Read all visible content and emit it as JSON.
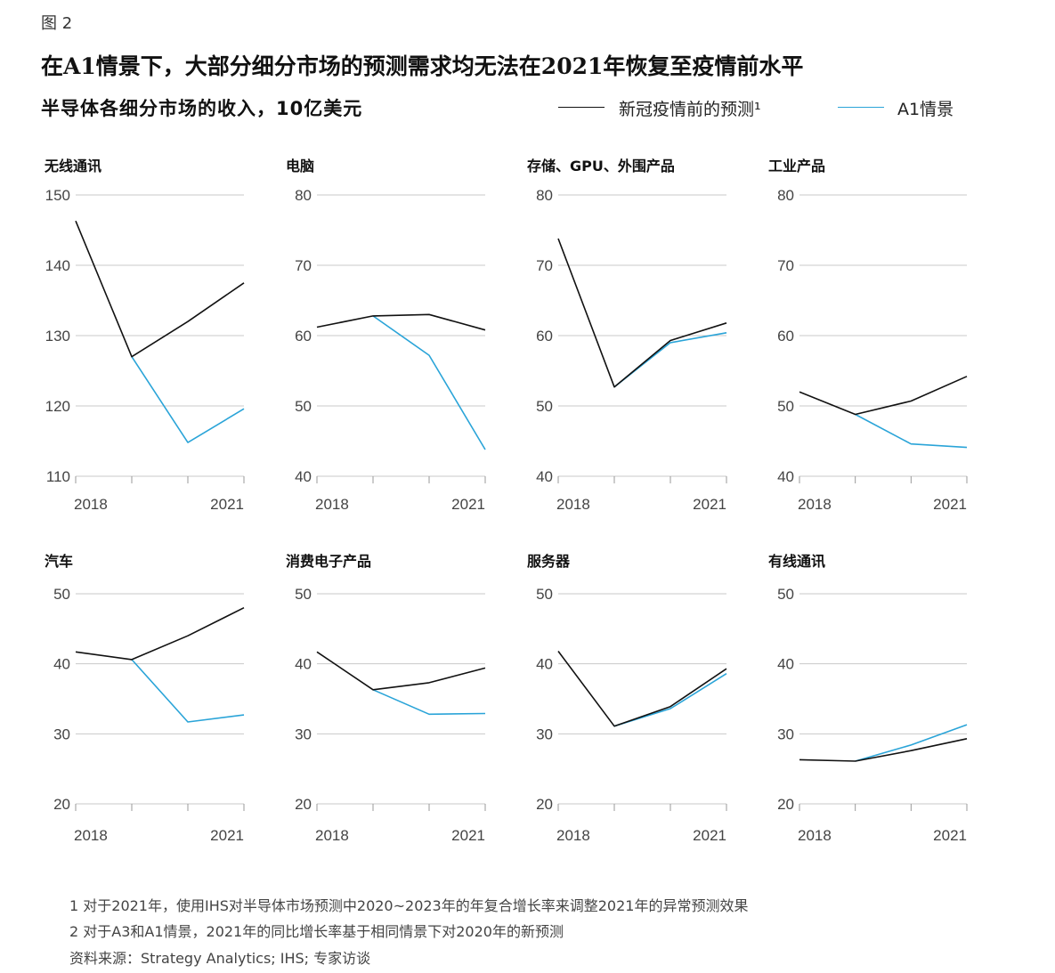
{
  "figure_label": "图 2",
  "title": "在A1情景下，大部分细分市场的预测需求均无法在2021年恢复至疫情前水平",
  "subtitle": "半导体各细分市场的收入，10亿美元",
  "legend": {
    "precovid": "新冠疫情前的预测¹",
    "a1": "A1情景"
  },
  "colors": {
    "precovid": "#111111",
    "a1": "#2aa4d8",
    "grid": "#c8c8c8"
  },
  "chart_data": [
    {
      "type": "line",
      "title": "无线通讯",
      "x": [
        "2018",
        "2019",
        "2020",
        "2021"
      ],
      "xticklabels": [
        "2018",
        "2021"
      ],
      "ylim": [
        110,
        150
      ],
      "yticks": [
        110,
        120,
        130,
        140,
        150
      ],
      "series": [
        {
          "name": "新冠疫情前的预测¹",
          "values": [
            146.3,
            127.0,
            132.0,
            137.5
          ]
        },
        {
          "name": "A1情景",
          "values": [
            null,
            127.0,
            114.8,
            119.6
          ]
        }
      ]
    },
    {
      "type": "line",
      "title": "电脑",
      "x": [
        "2018",
        "2019",
        "2020",
        "2021"
      ],
      "xticklabels": [
        "2018",
        "2021"
      ],
      "ylim": [
        40,
        80
      ],
      "yticks": [
        40,
        50,
        60,
        70,
        80
      ],
      "series": [
        {
          "name": "新冠疫情前的预测¹",
          "values": [
            61.2,
            62.8,
            63.0,
            60.8
          ]
        },
        {
          "name": "A1情景",
          "values": [
            null,
            62.8,
            57.2,
            43.8
          ]
        }
      ]
    },
    {
      "type": "line",
      "title": "存储、GPU、外围产品",
      "x": [
        "2018",
        "2019",
        "2020",
        "2021"
      ],
      "xticklabels": [
        "2018",
        "2021"
      ],
      "ylim": [
        40,
        80
      ],
      "yticks": [
        40,
        50,
        60,
        70,
        80
      ],
      "series": [
        {
          "name": "新冠疫情前的预测¹",
          "values": [
            73.8,
            52.7,
            59.3,
            61.8
          ]
        },
        {
          "name": "A1情景",
          "values": [
            null,
            52.7,
            59.0,
            60.4
          ]
        }
      ]
    },
    {
      "type": "line",
      "title": "工业产品",
      "x": [
        "2018",
        "2019",
        "2020",
        "2021"
      ],
      "xticklabels": [
        "2018",
        "2021"
      ],
      "ylim": [
        40,
        80
      ],
      "yticks": [
        40,
        50,
        60,
        70,
        80
      ],
      "series": [
        {
          "name": "新冠疫情前的预测¹",
          "values": [
            52.0,
            48.8,
            50.7,
            54.2
          ]
        },
        {
          "name": "A1情景",
          "values": [
            null,
            48.8,
            44.6,
            44.1
          ]
        }
      ]
    },
    {
      "type": "line",
      "title": "汽车",
      "x": [
        "2018",
        "2019",
        "2020",
        "2021"
      ],
      "xticklabels": [
        "2018",
        "2021"
      ],
      "ylim": [
        20,
        50
      ],
      "yticks": [
        20,
        30,
        40,
        50
      ],
      "series": [
        {
          "name": "新冠疫情前的预测¹",
          "values": [
            41.7,
            40.6,
            44.0,
            48.0
          ]
        },
        {
          "name": "A1情景",
          "values": [
            null,
            40.6,
            31.7,
            32.7
          ]
        }
      ]
    },
    {
      "type": "line",
      "title": "消费电子产品",
      "x": [
        "2018",
        "2019",
        "2020",
        "2021"
      ],
      "xticklabels": [
        "2018",
        "2021"
      ],
      "ylim": [
        20,
        50
      ],
      "yticks": [
        20,
        30,
        40,
        50
      ],
      "series": [
        {
          "name": "新冠疫情前的预测¹",
          "values": [
            41.7,
            36.3,
            37.3,
            39.4
          ]
        },
        {
          "name": "A1情景",
          "values": [
            null,
            36.3,
            32.8,
            32.9
          ]
        }
      ]
    },
    {
      "type": "line",
      "title": "服务器",
      "x": [
        "2018",
        "2019",
        "2020",
        "2021"
      ],
      "xticklabels": [
        "2018",
        "2021"
      ],
      "ylim": [
        20,
        50
      ],
      "yticks": [
        20,
        30,
        40,
        50
      ],
      "series": [
        {
          "name": "新冠疫情前的预测¹",
          "values": [
            41.8,
            31.1,
            33.9,
            39.3
          ]
        },
        {
          "name": "A1情景",
          "values": [
            null,
            31.1,
            33.6,
            38.6
          ]
        }
      ]
    },
    {
      "type": "line",
      "title": "有线通讯",
      "x": [
        "2018",
        "2019",
        "2020",
        "2021"
      ],
      "xticklabels": [
        "2018",
        "2021"
      ],
      "ylim": [
        20,
        50
      ],
      "yticks": [
        20,
        30,
        40,
        50
      ],
      "series": [
        {
          "name": "新冠疫情前的预测¹",
          "values": [
            26.3,
            26.1,
            27.6,
            29.3
          ]
        },
        {
          "name": "A1情景",
          "values": [
            null,
            26.1,
            28.4,
            31.3
          ]
        }
      ]
    }
  ],
  "footnotes": [
    "1 对于2021年，使用IHS对半导体市场预测中2020~2023年的年复合增长率来调整2021年的异常预测效果",
    "2 对于A3和A1情景，2021年的同比增长率基于相同情景下对2020年的新预测",
    "资料来源：Strategy Analytics; IHS; 专家访谈"
  ]
}
